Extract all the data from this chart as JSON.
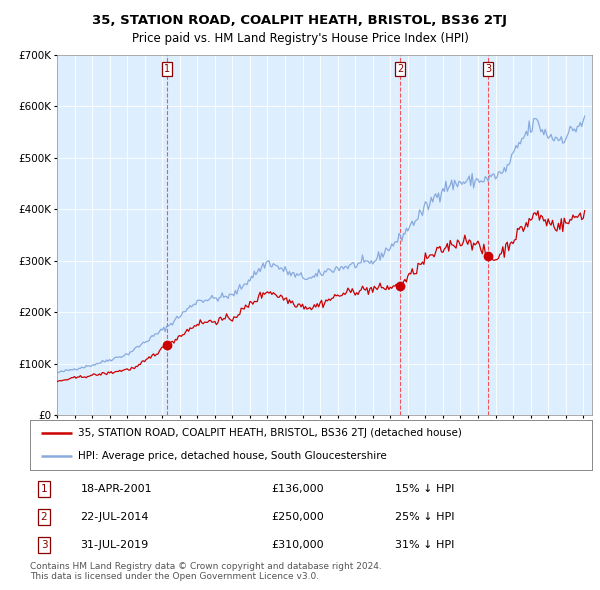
{
  "title": "35, STATION ROAD, COALPIT HEATH, BRISTOL, BS36 2TJ",
  "subtitle": "Price paid vs. HM Land Registry's House Price Index (HPI)",
  "legend_property": "35, STATION ROAD, COALPIT HEATH, BRISTOL, BS36 2TJ (detached house)",
  "legend_hpi": "HPI: Average price, detached house, South Gloucestershire",
  "footer": "Contains HM Land Registry data © Crown copyright and database right 2024.\nThis data is licensed under the Open Government Licence v3.0.",
  "table_labels": [
    "18-APR-2001",
    "22-JUL-2014",
    "31-JUL-2019"
  ],
  "table_prices": [
    "£136,000",
    "£250,000",
    "£310,000"
  ],
  "table_pcts": [
    "15% ↓ HPI",
    "25% ↓ HPI",
    "31% ↓ HPI"
  ],
  "property_color": "#cc0000",
  "hpi_color": "#88aadd",
  "background_color": "#ddeeff",
  "ylim": [
    0,
    700000
  ],
  "yticks": [
    0,
    100000,
    200000,
    300000,
    400000,
    500000,
    600000,
    700000
  ],
  "trans_years": [
    2001.29,
    2014.55,
    2019.58
  ],
  "trans_prices": [
    136000,
    250000,
    310000
  ]
}
